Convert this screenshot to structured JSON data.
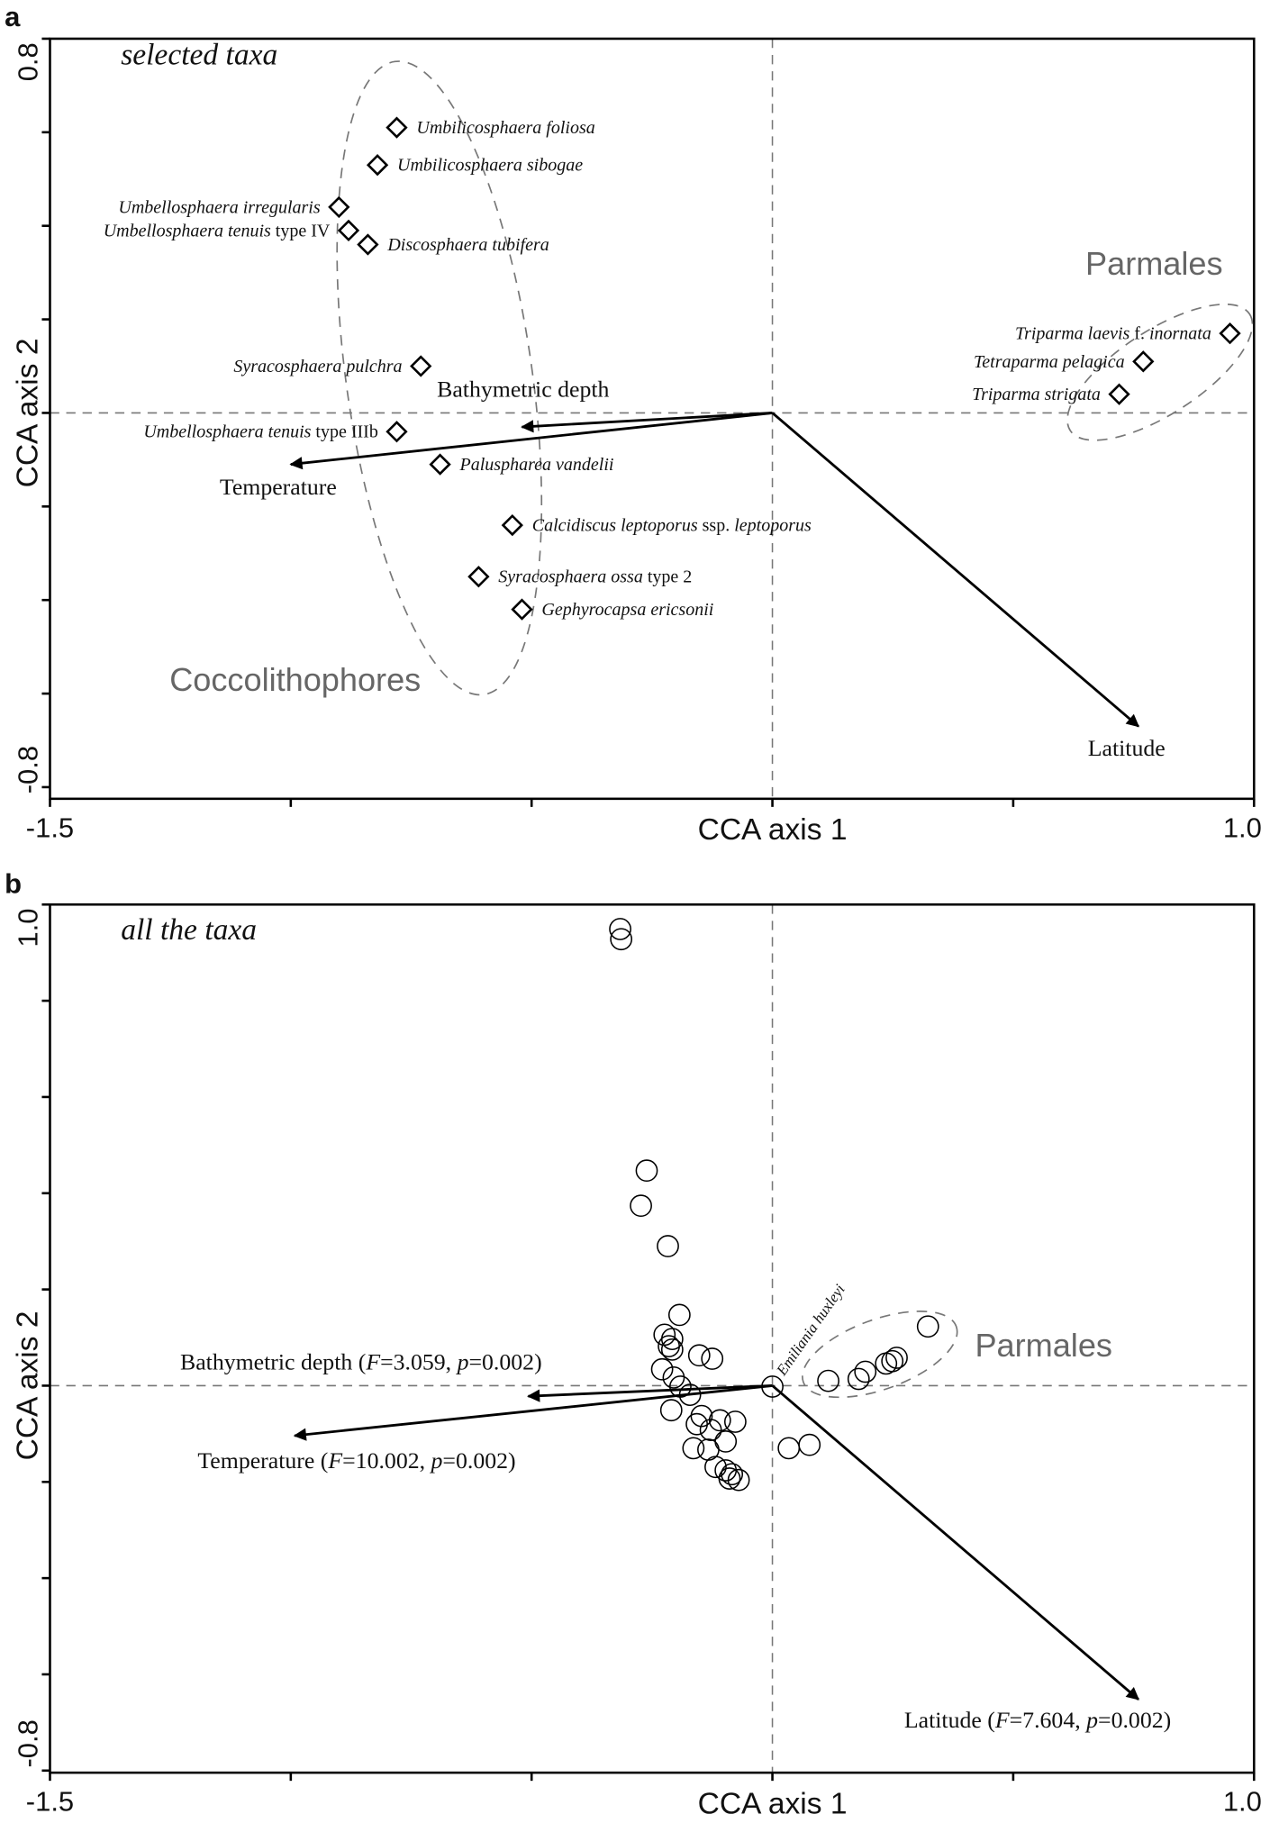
{
  "chart_data": [
    {
      "type": "scatter",
      "panel_label": "a",
      "subtitle": "selected taxa",
      "xlabel": "CCA axis 1",
      "ylabel": "CCA axis 2",
      "xlim": [
        -1.5,
        1.0
      ],
      "ylim": [
        -0.8,
        0.8
      ],
      "x_tick_labels": [
        "-1.5",
        "1.0"
      ],
      "y_tick_labels": [
        "0.8",
        "-0.8"
      ],
      "x_ticks": [
        -1.5,
        -1.0,
        -0.5,
        0,
        0.5,
        1.0
      ],
      "y_ticks": [
        0.8,
        0.6,
        0.4,
        0.2,
        0,
        -0.2,
        -0.4,
        -0.6,
        -0.8
      ],
      "marker": "diamond",
      "groups": [
        {
          "name": "Coccolithophores"
        },
        {
          "name": "Parmales"
        }
      ],
      "points": [
        {
          "x": -0.78,
          "y": 0.61,
          "label": [
            [
              "Umbilicosphaera foliosa",
              true
            ]
          ]
        },
        {
          "x": -0.82,
          "y": 0.53,
          "label": [
            [
              "Umbilicosphaera sibogae",
              true
            ]
          ]
        },
        {
          "x": -0.9,
          "y": 0.44,
          "label": [
            [
              "Umbellosphaera irregularis",
              true
            ]
          ]
        },
        {
          "x": -0.88,
          "y": 0.39,
          "label": [
            [
              "Umbellosphaera tenuis",
              true
            ],
            [
              " type IV",
              false
            ]
          ]
        },
        {
          "x": -0.84,
          "y": 0.36,
          "label": [
            [
              "Discosphaera tubifera",
              true
            ]
          ]
        },
        {
          "x": -0.73,
          "y": 0.1,
          "label": [
            [
              "Syracosphaera pulchra",
              true
            ]
          ]
        },
        {
          "x": -0.78,
          "y": -0.04,
          "label": [
            [
              "Umbellosphaera tenuis",
              true
            ],
            [
              " type IIIb",
              false
            ]
          ]
        },
        {
          "x": -0.69,
          "y": -0.11,
          "label": [
            [
              "Paluspharea vandelii",
              true
            ]
          ]
        },
        {
          "x": -0.54,
          "y": -0.24,
          "label": [
            [
              "Calcidiscus leptoporus",
              true
            ],
            [
              " ssp. ",
              false
            ],
            [
              "leptoporus",
              true
            ]
          ]
        },
        {
          "x": -0.61,
          "y": -0.35,
          "label": [
            [
              "Syracosphaera ossa",
              true
            ],
            [
              " type 2",
              false
            ]
          ]
        },
        {
          "x": -0.52,
          "y": -0.42,
          "label": [
            [
              "Gephyrocapsa ericsonii",
              true
            ]
          ]
        },
        {
          "x": 0.95,
          "y": 0.17,
          "label": [
            [
              "Triparma laevis",
              true
            ],
            [
              " f. ",
              false
            ],
            [
              "inornata",
              true
            ]
          ]
        },
        {
          "x": 0.77,
          "y": 0.11,
          "label": [
            [
              "Tetraparma pelagica",
              true
            ]
          ]
        },
        {
          "x": 0.72,
          "y": 0.04,
          "label": [
            [
              "Triparma strigata",
              true
            ]
          ]
        }
      ],
      "arrows": [
        {
          "x": -0.52,
          "y": -0.03,
          "label": [
            [
              "Bathymetric depth",
              false
            ]
          ]
        },
        {
          "x": -1.0,
          "y": -0.11,
          "label": [
            [
              "Temperature",
              false
            ]
          ]
        },
        {
          "x": 0.76,
          "y": -0.67,
          "label": [
            [
              "Latitude",
              false
            ]
          ]
        }
      ]
    },
    {
      "type": "scatter",
      "panel_label": "b",
      "subtitle": "all the taxa",
      "xlabel": "CCA axis 1",
      "ylabel": "CCA axis 2",
      "xlim": [
        -1.5,
        1.0
      ],
      "ylim": [
        -0.8,
        1.0
      ],
      "x_tick_labels": [
        "-1.5",
        "1.0"
      ],
      "y_tick_labels": [
        "1.0",
        "-0.8"
      ],
      "x_ticks": [
        -1.5,
        -1.0,
        -0.5,
        0,
        0.5,
        1.0
      ],
      "y_ticks": [
        1.0,
        0.8,
        0.6,
        0.4,
        0.2,
        0,
        -0.2,
        -0.4,
        -0.6,
        -0.8
      ],
      "marker": "circle",
      "groups": [
        {
          "name": "Parmales"
        }
      ],
      "annotation": "Emiliania huxleyi",
      "points": [
        {
          "x": -0.316,
          "y": 0.949
        },
        {
          "x": -0.314,
          "y": 0.928
        },
        {
          "x": -0.261,
          "y": 0.447
        },
        {
          "x": -0.273,
          "y": 0.374
        },
        {
          "x": -0.217,
          "y": 0.29
        },
        {
          "x": -0.193,
          "y": 0.147
        },
        {
          "x": -0.224,
          "y": 0.106
        },
        {
          "x": -0.208,
          "y": 0.097
        },
        {
          "x": -0.215,
          "y": 0.082
        },
        {
          "x": -0.208,
          "y": 0.075
        },
        {
          "x": -0.152,
          "y": 0.063
        },
        {
          "x": -0.125,
          "y": 0.056
        },
        {
          "x": -0.229,
          "y": 0.034
        },
        {
          "x": -0.205,
          "y": 0.017
        },
        {
          "x": -0.191,
          "y": -0.002
        },
        {
          "x": -0.171,
          "y": -0.019
        },
        {
          "x": -0.21,
          "y": -0.051
        },
        {
          "x": -0.147,
          "y": -0.063
        },
        {
          "x": -0.157,
          "y": -0.08
        },
        {
          "x": -0.128,
          "y": -0.092
        },
        {
          "x": -0.109,
          "y": -0.072
        },
        {
          "x": -0.077,
          "y": -0.075
        },
        {
          "x": -0.164,
          "y": -0.13
        },
        {
          "x": -0.133,
          "y": -0.133
        },
        {
          "x": -0.097,
          "y": -0.116
        },
        {
          "x": -0.118,
          "y": -0.169
        },
        {
          "x": -0.097,
          "y": -0.176
        },
        {
          "x": -0.084,
          "y": -0.184
        },
        {
          "x": -0.089,
          "y": -0.193
        },
        {
          "x": -0.07,
          "y": -0.196
        },
        {
          "x": 0.0,
          "y": -0.002
        },
        {
          "x": 0.034,
          "y": -0.13
        },
        {
          "x": 0.077,
          "y": -0.123
        },
        {
          "x": 0.116,
          "y": 0.01
        },
        {
          "x": 0.179,
          "y": 0.014
        },
        {
          "x": 0.193,
          "y": 0.029
        },
        {
          "x": 0.236,
          "y": 0.046
        },
        {
          "x": 0.249,
          "y": 0.051
        },
        {
          "x": 0.258,
          "y": 0.058
        },
        {
          "x": 0.323,
          "y": 0.123
        }
      ],
      "arrows": [
        {
          "x": -0.507,
          "y": -0.022,
          "label": [
            [
              "Bathymetric depth (",
              false
            ],
            [
              "F",
              true
            ],
            [
              "=3.059, ",
              false
            ],
            [
              "p",
              true
            ],
            [
              "=0.002)",
              false
            ]
          ]
        },
        {
          "x": -0.992,
          "y": -0.104,
          "label": [
            [
              "Temperature (",
              false
            ],
            [
              "F",
              true
            ],
            [
              "=10.002, ",
              false
            ],
            [
              "p",
              true
            ],
            [
              "=0.002)",
              false
            ]
          ]
        },
        {
          "x": 0.76,
          "y": -0.652,
          "label": [
            [
              "Latitude (",
              false
            ],
            [
              "F",
              true
            ],
            [
              "=7.604, ",
              false
            ],
            [
              "p",
              true
            ],
            [
              "=0.002)",
              false
            ]
          ]
        }
      ]
    }
  ]
}
